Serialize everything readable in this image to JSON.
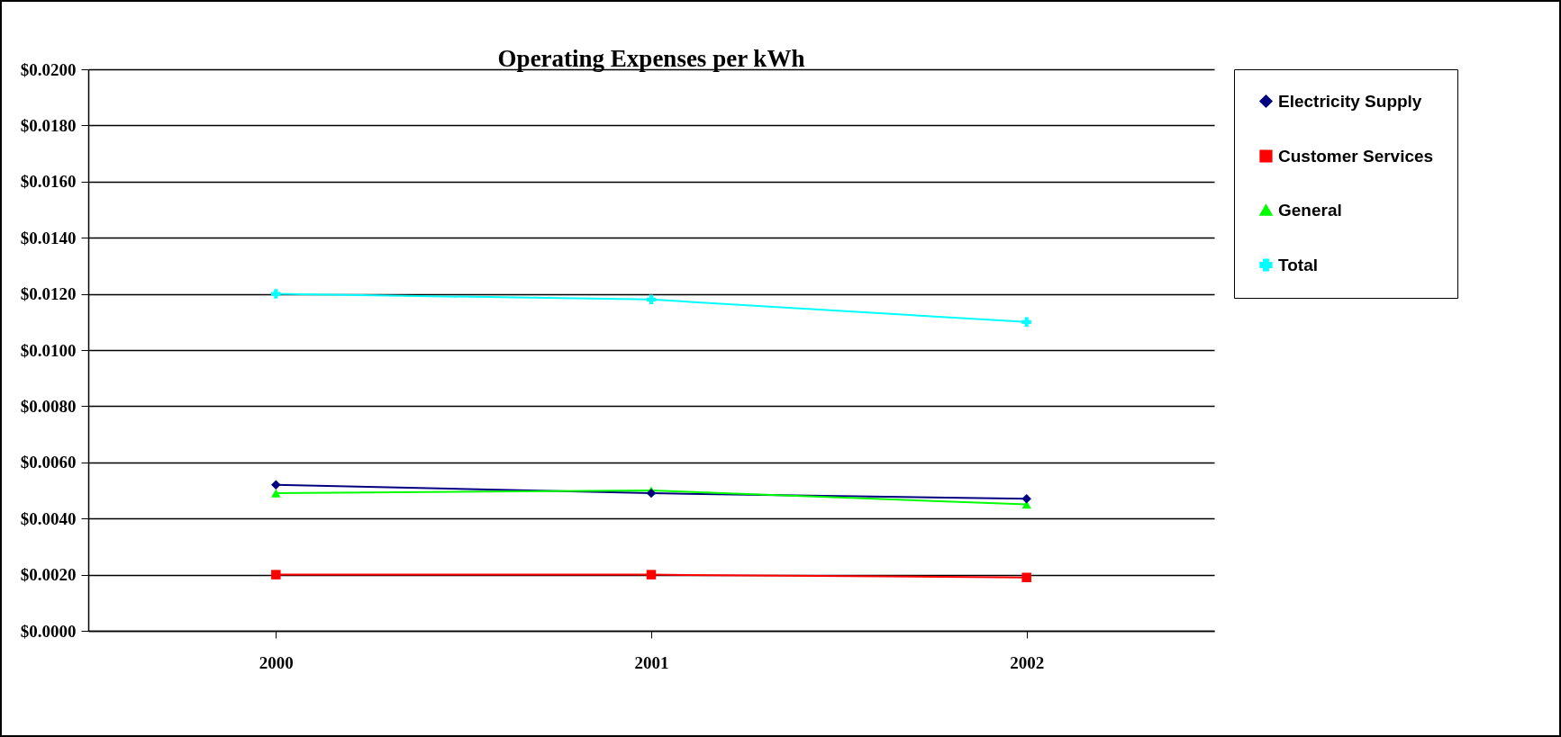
{
  "chart_data": {
    "type": "line",
    "title": "Operating Expenses per kWh",
    "categories": [
      "2000",
      "2001",
      "2002"
    ],
    "series": [
      {
        "name": "Electricity Supply",
        "color": "#000080",
        "marker": "diamond",
        "values": [
          0.0052,
          0.0049,
          0.0047
        ]
      },
      {
        "name": "Customer Services",
        "color": "#ff0000",
        "marker": "square",
        "values": [
          0.002,
          0.002,
          0.0019
        ]
      },
      {
        "name": "General",
        "color": "#00ff00",
        "marker": "triangle",
        "values": [
          0.0049,
          0.005,
          0.0045
        ]
      },
      {
        "name": "Total",
        "color": "#00ffff",
        "marker": "cross",
        "values": [
          0.012,
          0.0118,
          0.011
        ]
      }
    ],
    "ylim": [
      0,
      0.02
    ],
    "yticks": [
      {
        "value": 0,
        "label": "$0.0000"
      },
      {
        "value": 0.002,
        "label": "$0.0020"
      },
      {
        "value": 0.004,
        "label": "$0.0040"
      },
      {
        "value": 0.006,
        "label": "$0.0060"
      },
      {
        "value": 0.008,
        "label": "$0.0080"
      },
      {
        "value": 0.01,
        "label": "$0.0100"
      },
      {
        "value": 0.012,
        "label": "$0.0120"
      },
      {
        "value": 0.014,
        "label": "$0.0140"
      },
      {
        "value": 0.016,
        "label": "$0.0160"
      },
      {
        "value": 0.018,
        "label": "$0.0180"
      },
      {
        "value": 0.02,
        "label": "$0.0200"
      }
    ],
    "grid": "y",
    "legend": "right",
    "line_style": "solid"
  }
}
